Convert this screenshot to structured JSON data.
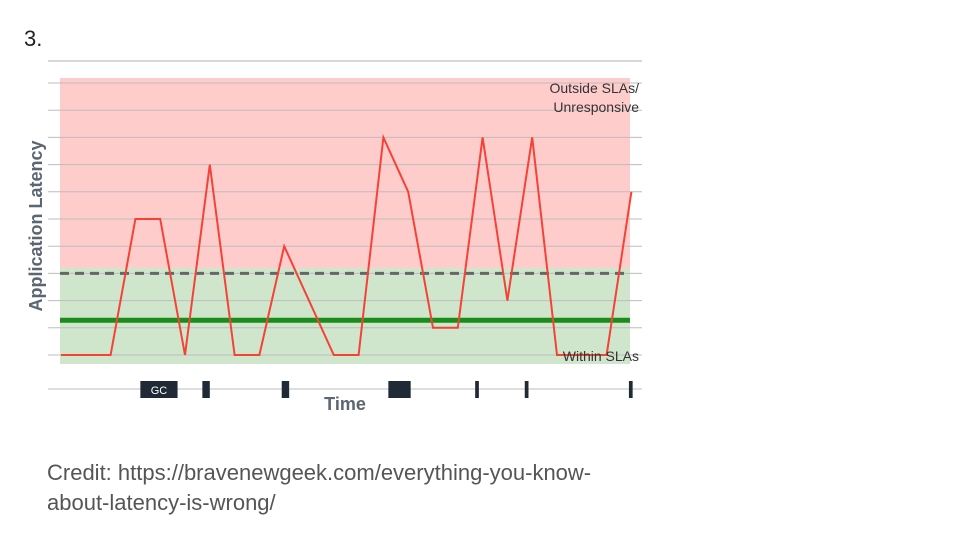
{
  "slide": {
    "number": "3.",
    "credit_line1": "Credit: https://bravenewgeek.com/everything-you-know-",
    "credit_line2": "about-latency-is-wrong/"
  },
  "colors": {
    "outside_zone": "#ffcccc",
    "within_zone": "#cfe5cc",
    "latency_line": "#f44336",
    "sla_line": "#1a8c1a",
    "threshold_dash": "#666666",
    "gridline": "#cccccc",
    "gc_marker": "#1f2a36",
    "axis_label": "#5a6672"
  },
  "chart_data": {
    "type": "line",
    "title": "",
    "xlabel": "Time",
    "ylabel": "Application Latency",
    "xlim": [
      0,
      23.5
    ],
    "ylim": [
      0,
      10
    ],
    "grid": true,
    "zones": [
      {
        "label": "Outside SLAs/ Unresponsive",
        "label_line1": "Outside SLAs/",
        "label_line2": "Unresponsive",
        "from": 3.2,
        "to": 10
      },
      {
        "label": "Within SLAs",
        "from": 0,
        "to": 3.2
      }
    ],
    "reference_lines": [
      {
        "kind": "threshold-dashed",
        "y": 3.0
      },
      {
        "kind": "sla-solid",
        "y": 1.5
      }
    ],
    "series": [
      {
        "values": [
          [
            0,
            0
          ],
          [
            2,
            0
          ],
          [
            3,
            5
          ],
          [
            4,
            5
          ],
          [
            5,
            0
          ],
          [
            6,
            7
          ],
          [
            7,
            0
          ],
          [
            8,
            0
          ],
          [
            9,
            4
          ],
          [
            11,
            0
          ],
          [
            12,
            0
          ],
          [
            13,
            8
          ],
          [
            14,
            6
          ],
          [
            15,
            1
          ],
          [
            16,
            1
          ],
          [
            17,
            8
          ],
          [
            18,
            2
          ],
          [
            19,
            8
          ],
          [
            20,
            0
          ],
          [
            22,
            0
          ],
          [
            23,
            6
          ]
        ]
      }
    ],
    "gc_pauses": [
      {
        "label": "GC",
        "start": 3.2,
        "end": 4.7
      },
      {
        "start": 5.7,
        "end": 6.0
      },
      {
        "start": 8.9,
        "end": 9.2
      },
      {
        "start": 13.2,
        "end": 14.1
      },
      {
        "start": 16.7,
        "end": 16.85
      },
      {
        "start": 18.7,
        "end": 18.85
      },
      {
        "start": 22.9,
        "end": 23.05
      }
    ]
  }
}
